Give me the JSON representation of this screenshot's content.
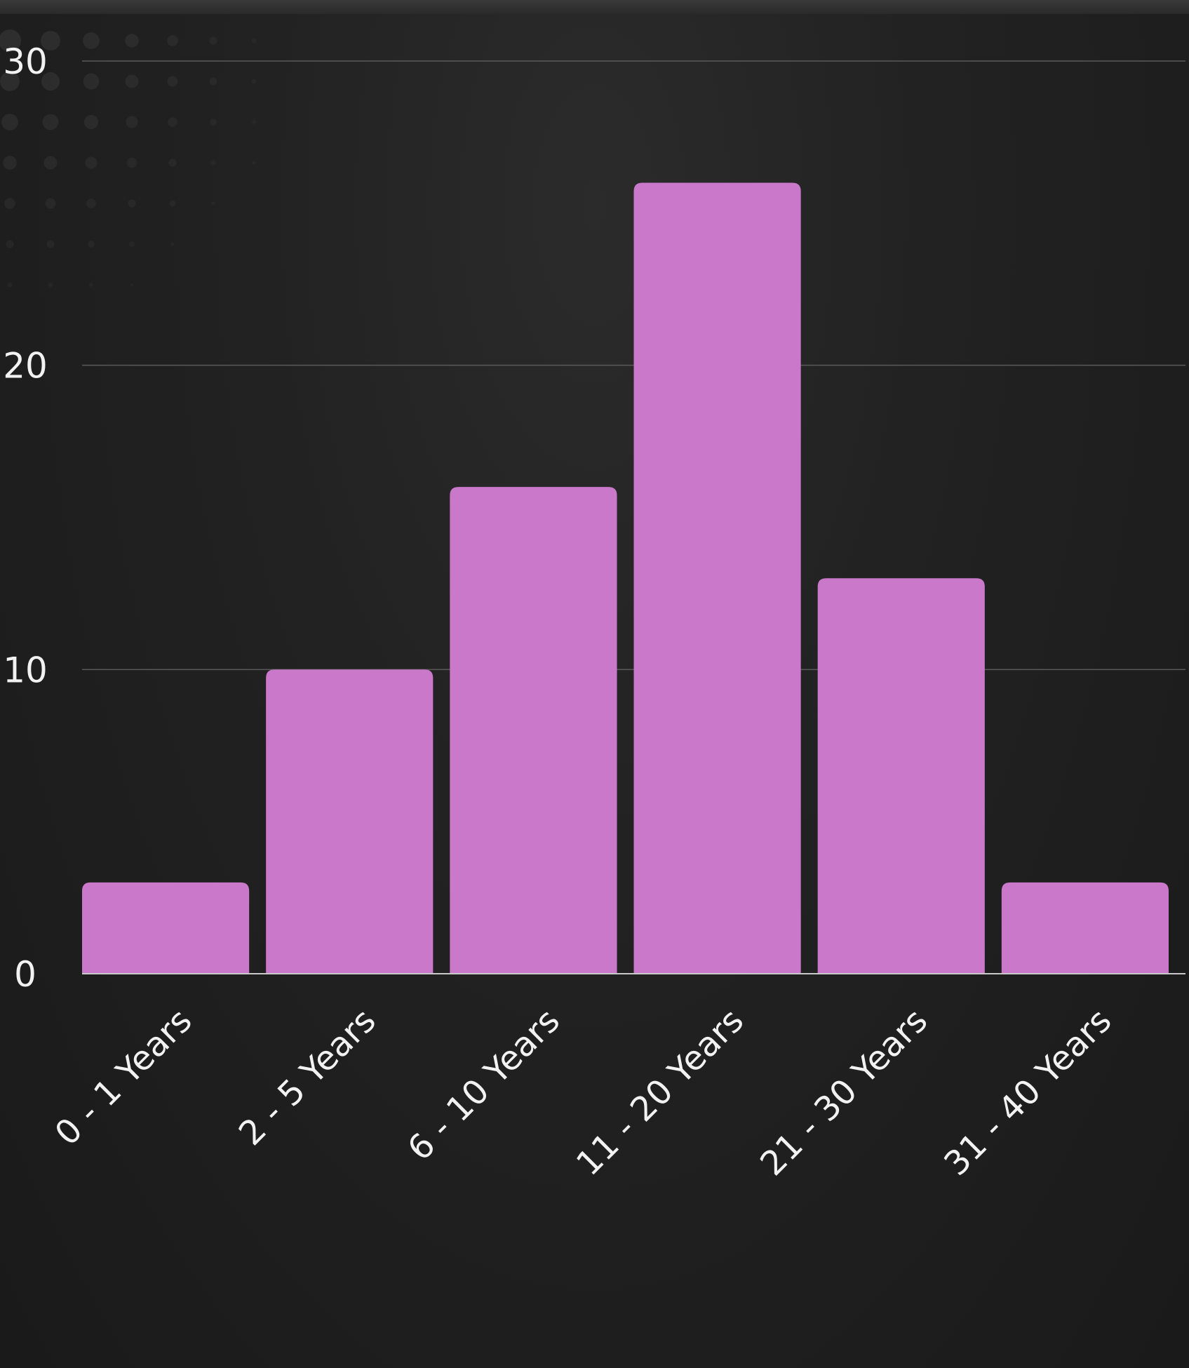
{
  "chart_data": {
    "type": "bar",
    "categories": [
      "0 - 1 Years",
      "2 - 5 Years",
      "6 - 10 Years",
      "11 - 20 Years",
      "21 - 30 Years",
      "31 - 40 Years"
    ],
    "values": [
      3,
      10,
      16,
      26,
      13,
      3
    ],
    "ylim": [
      0,
      30
    ],
    "yticks": [
      "0",
      "10",
      "20",
      "30"
    ],
    "title": "",
    "xlabel": "",
    "ylabel": "",
    "grid": true,
    "bar_color": "#ca79ca",
    "background_color": "#1d1d1d",
    "text_color": "#f2f2f2"
  }
}
